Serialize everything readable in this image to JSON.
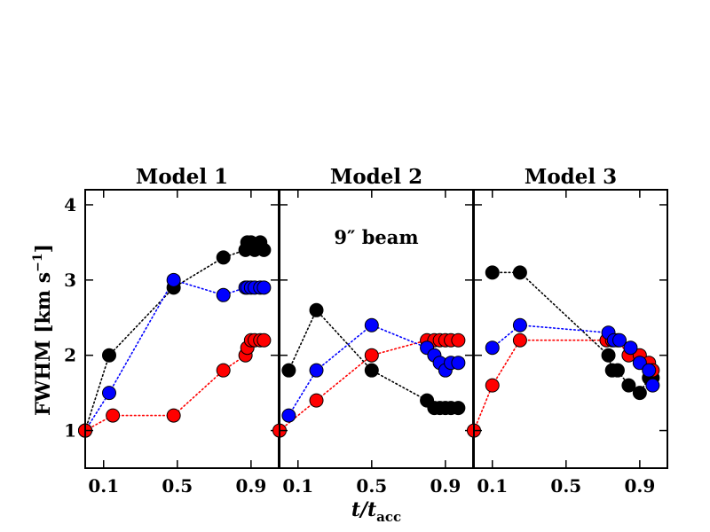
{
  "chart_data": {
    "type": "scatter",
    "xlabel_main": "t/t",
    "xlabel_sub": "acc",
    "ylabel": "FWHM [km s",
    "ylabel_sup": "−1",
    "ylabel_end": "]",
    "xlim": [
      0,
      1.05
    ],
    "ylim": [
      0.5,
      4.2
    ],
    "xticks": [
      0.1,
      0.5,
      0.9
    ],
    "xtick_labels": [
      "0.1",
      "0.5",
      "0.9"
    ],
    "yticks": [
      1,
      2,
      3,
      4
    ],
    "ytick_labels": [
      "1",
      "2",
      "3",
      "4"
    ],
    "colors": {
      "black": "#000000",
      "blue": "#0000ff",
      "red": "#ff0000"
    },
    "panels": [
      {
        "title": "Model 1",
        "annotation": "",
        "series": [
          {
            "name": "black",
            "color": "#000000",
            "x": [
              0.0,
              0.13,
              0.48,
              0.75,
              0.87,
              0.88,
              0.9,
              0.92,
              0.95,
              0.97
            ],
            "y": [
              1.0,
              2.0,
              2.9,
              3.3,
              3.4,
              3.5,
              3.5,
              3.4,
              3.5,
              3.4
            ]
          },
          {
            "name": "blue",
            "color": "#0000ff",
            "x": [
              0.0,
              0.13,
              0.48,
              0.75,
              0.87,
              0.88,
              0.9,
              0.92,
              0.95,
              0.97
            ],
            "y": [
              1.0,
              1.5,
              3.0,
              2.8,
              2.9,
              2.9,
              2.9,
              2.9,
              2.9,
              2.9
            ]
          },
          {
            "name": "red",
            "color": "#ff0000",
            "x": [
              0.0,
              0.15,
              0.48,
              0.75,
              0.87,
              0.88,
              0.9,
              0.92,
              0.95,
              0.97
            ],
            "y": [
              1.0,
              1.2,
              1.2,
              1.8,
              2.0,
              2.1,
              2.2,
              2.2,
              2.2,
              2.2
            ]
          }
        ]
      },
      {
        "title": "Model 2",
        "annotation": "9″ beam",
        "series": [
          {
            "name": "red",
            "color": "#ff0000",
            "x": [
              0.0,
              0.2,
              0.5,
              0.8,
              0.84,
              0.87,
              0.9,
              0.93,
              0.97
            ],
            "y": [
              1.0,
              1.4,
              2.0,
              2.2,
              2.2,
              2.2,
              2.2,
              2.2,
              2.2
            ]
          },
          {
            "name": "blue",
            "color": "#0000ff",
            "x": [
              0.05,
              0.2,
              0.5,
              0.8,
              0.84,
              0.87,
              0.9,
              0.93,
              0.97
            ],
            "y": [
              1.2,
              1.8,
              2.4,
              2.1,
              2.0,
              1.9,
              1.8,
              1.9,
              1.9
            ]
          },
          {
            "name": "black",
            "color": "#000000",
            "x": [
              0.05,
              0.2,
              0.5,
              0.8,
              0.84,
              0.87,
              0.9,
              0.93,
              0.97
            ],
            "y": [
              1.8,
              2.6,
              1.8,
              1.4,
              1.3,
              1.3,
              1.3,
              1.3,
              1.3
            ]
          }
        ]
      },
      {
        "title": "Model 3",
        "annotation": "",
        "series": [
          {
            "name": "black",
            "color": "#000000",
            "x": [
              0.1,
              0.25,
              0.73,
              0.75,
              0.78,
              0.84,
              0.9,
              0.95,
              0.97
            ],
            "y": [
              3.1,
              3.1,
              2.0,
              1.8,
              1.8,
              1.6,
              1.5,
              1.7,
              1.7
            ]
          },
          {
            "name": "red",
            "color": "#ff0000",
            "x": [
              0.0,
              0.1,
              0.25,
              0.72,
              0.75,
              0.78,
              0.84,
              0.9,
              0.95,
              0.97
            ],
            "y": [
              1.0,
              1.6,
              2.2,
              2.2,
              2.2,
              2.2,
              2.0,
              2.0,
              1.9,
              1.8
            ]
          },
          {
            "name": "blue",
            "color": "#0000ff",
            "x": [
              0.1,
              0.25,
              0.73,
              0.76,
              0.79,
              0.85,
              0.9,
              0.95,
              0.97
            ],
            "y": [
              2.1,
              2.4,
              2.3,
              2.2,
              2.2,
              2.1,
              1.9,
              1.8,
              1.6
            ]
          }
        ]
      }
    ]
  }
}
